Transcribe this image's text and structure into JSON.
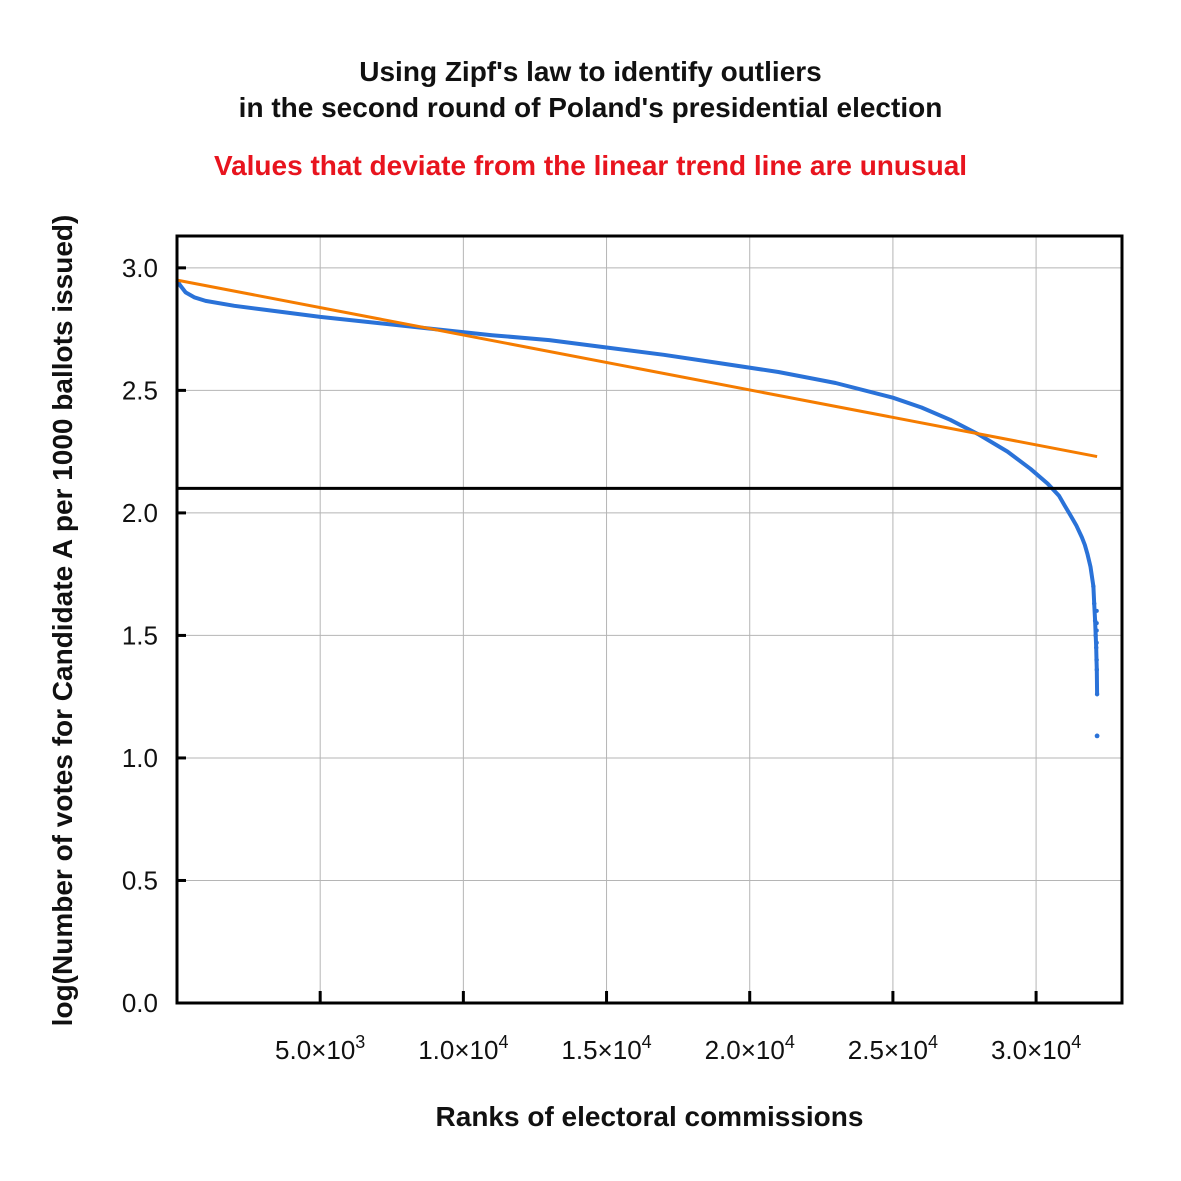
{
  "title_line1": "Using Zipf's law to identify outliers",
  "title_line2": "in the second round of Poland's presidential election",
  "subtitle": "Values that deviate from the linear trend line are unusual",
  "chart_data": {
    "type": "line",
    "title": "Using Zipf's law to identify outliers in the second round of Poland's presidential election",
    "subtitle": "Values that deviate from the linear trend line are unusual",
    "xlabel": "Ranks of electoral commissions",
    "ylabel": "log(Number of votes for Candidate A per 1000 ballots issued)",
    "xlim": [
      0,
      33000
    ],
    "ylim": [
      0,
      3.13
    ],
    "xticks": [
      {
        "value": 5000,
        "mant": "5.0",
        "exp": "3"
      },
      {
        "value": 10000,
        "mant": "1.0",
        "exp": "4"
      },
      {
        "value": 15000,
        "mant": "1.5",
        "exp": "4"
      },
      {
        "value": 20000,
        "mant": "2.0",
        "exp": "4"
      },
      {
        "value": 25000,
        "mant": "2.5",
        "exp": "4"
      },
      {
        "value": 30000,
        "mant": "3.0",
        "exp": "4"
      }
    ],
    "yticks": [
      {
        "value": 0.0,
        "label": "0.0"
      },
      {
        "value": 0.5,
        "label": "0.5"
      },
      {
        "value": 1.0,
        "label": "1.0"
      },
      {
        "value": 1.5,
        "label": "1.5"
      },
      {
        "value": 2.0,
        "label": "2.0"
      },
      {
        "value": 2.5,
        "label": "2.5"
      },
      {
        "value": 3.0,
        "label": "3.0"
      }
    ],
    "grid": true,
    "reference_hline": 2.1,
    "series": [
      {
        "color": "#2a72d8",
        "style": "dots",
        "x": [
          1,
          100,
          300,
          600,
          1000,
          2000,
          3000,
          5000,
          7000,
          9000,
          11000,
          13000,
          15000,
          17000,
          19000,
          21000,
          23000,
          25000,
          26000,
          27000,
          28000,
          29000,
          29800,
          30400,
          30800,
          31000,
          31200,
          31400,
          31600,
          31700,
          31800,
          31900,
          32000,
          32030,
          32060,
          32080,
          32100,
          32110,
          32120,
          32130
        ],
        "y": [
          2.95,
          2.93,
          2.9,
          2.88,
          2.865,
          2.845,
          2.83,
          2.8,
          2.775,
          2.75,
          2.725,
          2.705,
          2.675,
          2.645,
          2.61,
          2.575,
          2.53,
          2.47,
          2.43,
          2.38,
          2.32,
          2.25,
          2.18,
          2.12,
          2.07,
          2.03,
          1.99,
          1.95,
          1.9,
          1.87,
          1.83,
          1.78,
          1.7,
          1.63,
          1.56,
          1.5,
          1.45,
          1.4,
          1.36,
          1.26
        ]
      },
      {
        "color": "#2a72d8",
        "style": "outliers",
        "x": [
          32130
        ],
        "y": [
          1.09
        ]
      },
      {
        "color": "#f57c00",
        "style": "line",
        "x": [
          0,
          32130
        ],
        "y": [
          2.95,
          2.23
        ]
      }
    ]
  }
}
